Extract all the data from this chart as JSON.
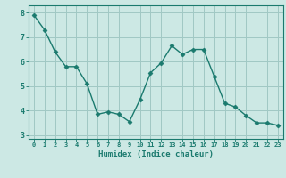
{
  "x": [
    0,
    1,
    2,
    3,
    4,
    5,
    6,
    7,
    8,
    9,
    10,
    11,
    12,
    13,
    14,
    15,
    16,
    17,
    18,
    19,
    20,
    21,
    22,
    23
  ],
  "y": [
    7.9,
    7.3,
    6.4,
    5.8,
    5.8,
    5.1,
    3.85,
    3.95,
    3.85,
    3.55,
    4.45,
    5.55,
    5.95,
    6.65,
    6.3,
    6.5,
    6.5,
    5.4,
    4.3,
    4.15,
    3.8,
    3.5,
    3.5,
    3.4
  ],
  "line_color": "#1a7a6e",
  "marker": "D",
  "marker_size": 2.5,
  "bg_color": "#cce8e4",
  "grid_color": "#a0c8c4",
  "axis_color": "#1a7a6e",
  "tick_color": "#1a7a6e",
  "xlabel": "Humidex (Indice chaleur)",
  "ylim": [
    2.85,
    8.3
  ],
  "xlim": [
    -0.5,
    23.5
  ],
  "yticks": [
    3,
    4,
    5,
    6,
    7,
    8
  ],
  "xticks": [
    0,
    1,
    2,
    3,
    4,
    5,
    6,
    7,
    8,
    9,
    10,
    11,
    12,
    13,
    14,
    15,
    16,
    17,
    18,
    19,
    20,
    21,
    22,
    23
  ],
  "xtick_labels": [
    "0",
    "1",
    "2",
    "3",
    "4",
    "5",
    "6",
    "7",
    "8",
    "9",
    "10",
    "11",
    "12",
    "13",
    "14",
    "15",
    "16",
    "17",
    "18",
    "19",
    "20",
    "21",
    "22",
    "23"
  ]
}
